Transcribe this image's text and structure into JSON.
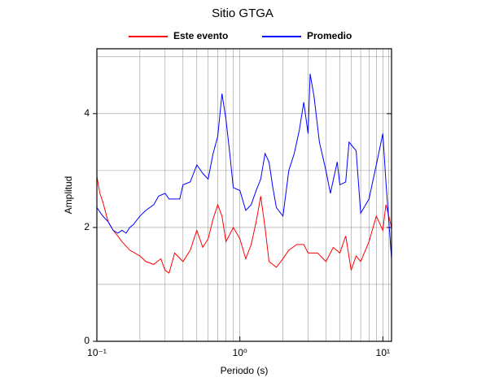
{
  "chart_data": {
    "type": "line",
    "title": "Sitio GTGA",
    "xlabel": "Periodo (s)",
    "ylabel": "Amplitud",
    "xscale": "log",
    "xlim": [
      0.1,
      11.5
    ],
    "ylim": [
      0,
      5.14
    ],
    "xticks": [
      {
        "value": 0.1,
        "label": "10⁻¹"
      },
      {
        "value": 1,
        "label": "10⁰"
      },
      {
        "value": 10,
        "label": "10¹"
      }
    ],
    "yticks": [
      0,
      2,
      4
    ],
    "xgrid": [
      0.2,
      0.3,
      0.4,
      0.5,
      0.6,
      0.7,
      0.8,
      0.9,
      1,
      2,
      3,
      4,
      5,
      6,
      7,
      8,
      9,
      10,
      11
    ],
    "ygrid": [
      1,
      2,
      3,
      4,
      5
    ],
    "legend": "top",
    "series": [
      {
        "name": "Este evento",
        "color": "#ff0000",
        "x": [
          0.1,
          0.105,
          0.11,
          0.12,
          0.13,
          0.14,
          0.15,
          0.17,
          0.2,
          0.22,
          0.25,
          0.28,
          0.3,
          0.32,
          0.35,
          0.4,
          0.45,
          0.5,
          0.55,
          0.6,
          0.65,
          0.7,
          0.75,
          0.8,
          0.9,
          1.0,
          1.1,
          1.2,
          1.3,
          1.4,
          1.5,
          1.6,
          1.8,
          2.0,
          2.2,
          2.5,
          2.8,
          3.0,
          3.5,
          4.0,
          4.5,
          5.0,
          5.5,
          6.0,
          6.5,
          7.0,
          8.0,
          9.0,
          10.0,
          10.5,
          11.5
        ],
        "values": [
          2.9,
          2.6,
          2.45,
          2.1,
          1.95,
          1.85,
          1.75,
          1.6,
          1.5,
          1.4,
          1.35,
          1.45,
          1.25,
          1.2,
          1.55,
          1.4,
          1.6,
          1.95,
          1.65,
          1.8,
          2.15,
          2.4,
          2.2,
          1.75,
          2.0,
          1.8,
          1.45,
          1.7,
          2.1,
          2.55,
          2.0,
          1.4,
          1.3,
          1.45,
          1.6,
          1.7,
          1.7,
          1.55,
          1.55,
          1.4,
          1.65,
          1.55,
          1.85,
          1.25,
          1.5,
          1.4,
          1.75,
          2.2,
          1.95,
          2.4,
          2.0
        ]
      },
      {
        "name": "Promedio",
        "color": "#0000ff",
        "x": [
          0.1,
          0.11,
          0.12,
          0.13,
          0.14,
          0.15,
          0.16,
          0.17,
          0.18,
          0.2,
          0.22,
          0.25,
          0.27,
          0.3,
          0.32,
          0.35,
          0.38,
          0.4,
          0.45,
          0.5,
          0.55,
          0.6,
          0.65,
          0.7,
          0.75,
          0.8,
          0.85,
          0.9,
          1.0,
          1.1,
          1.2,
          1.3,
          1.4,
          1.5,
          1.6,
          1.7,
          1.8,
          2.0,
          2.2,
          2.4,
          2.6,
          2.8,
          3.0,
          3.1,
          3.3,
          3.6,
          4.0,
          4.3,
          4.8,
          5.0,
          5.5,
          5.8,
          6.5,
          7.0,
          8.0,
          9.0,
          10.0,
          10.5,
          11.5
        ],
        "values": [
          2.35,
          2.2,
          2.1,
          1.95,
          1.9,
          1.95,
          1.9,
          2.0,
          2.05,
          2.2,
          2.3,
          2.4,
          2.55,
          2.6,
          2.5,
          2.5,
          2.5,
          2.75,
          2.8,
          3.1,
          2.95,
          2.85,
          3.3,
          3.6,
          4.35,
          3.9,
          3.3,
          2.7,
          2.65,
          2.3,
          2.4,
          2.65,
          2.85,
          3.3,
          3.15,
          2.7,
          2.35,
          2.2,
          3.0,
          3.3,
          3.7,
          4.2,
          3.65,
          4.7,
          4.3,
          3.5,
          3.0,
          2.6,
          3.15,
          2.75,
          2.8,
          3.5,
          3.35,
          2.25,
          2.5,
          3.1,
          3.65,
          2.8,
          1.45
        ]
      }
    ]
  }
}
